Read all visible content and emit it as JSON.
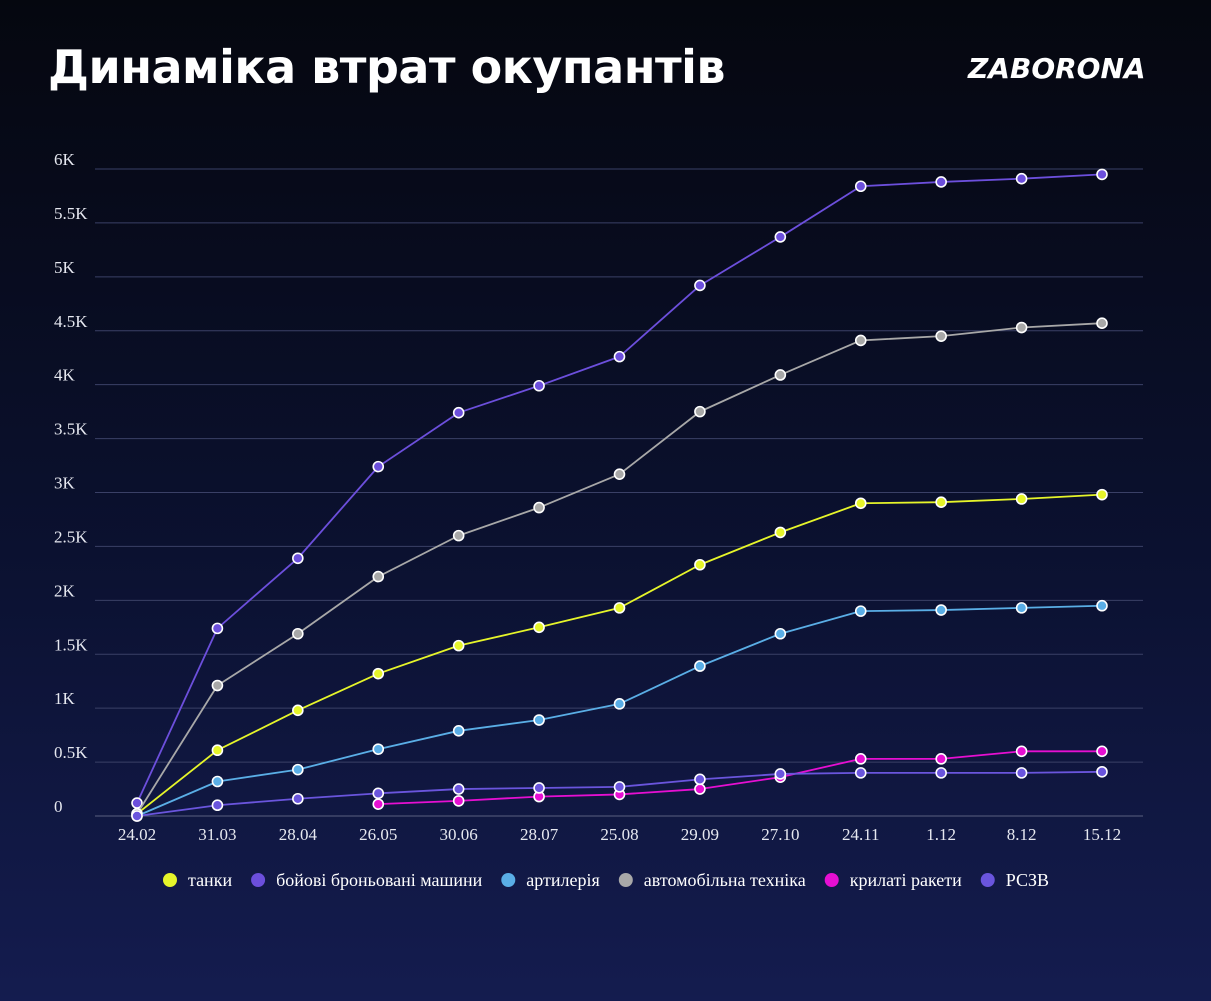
{
  "header": {
    "title": "Динаміка втрат окупантів",
    "brand": "ZABORONA"
  },
  "chart_data": {
    "type": "line",
    "title": "Динаміка втрат окупантів",
    "categories": [
      "24.02",
      "31.03",
      "28.04",
      "26.05",
      "30.06",
      "28.07",
      "25.08",
      "29.09",
      "27.10",
      "24.11",
      "1.12",
      "8.12",
      "15.12"
    ],
    "y_ticks": [
      0,
      500,
      1000,
      1500,
      2000,
      2500,
      3000,
      3500,
      4000,
      4500,
      5000,
      5500,
      6000
    ],
    "y_tick_labels": [
      "0",
      "0.5K",
      "1K",
      "1.5K",
      "2K",
      "2.5K",
      "3K",
      "3.5K",
      "4K",
      "4.5K",
      "5K",
      "5.5K",
      "6K"
    ],
    "ylim": [
      0,
      6000
    ],
    "grid": "horizontal",
    "legend_position": "bottom",
    "series": [
      {
        "name": "танки",
        "color": "#e6f52a",
        "values": [
          20,
          610,
          980,
          1320,
          1580,
          1750,
          1930,
          2330,
          2630,
          2900,
          2910,
          2940,
          2980
        ]
      },
      {
        "name": "бойові броньовані машини",
        "color": "#6c4fdc",
        "values": [
          120,
          1740,
          2390,
          3240,
          3740,
          3990,
          4260,
          4920,
          5370,
          5840,
          5880,
          5910,
          5950
        ]
      },
      {
        "name": "артилерія",
        "color": "#5aaee6",
        "values": [
          0,
          320,
          430,
          620,
          790,
          890,
          1040,
          1390,
          1690,
          1900,
          1910,
          1930,
          1950
        ]
      },
      {
        "name": "автомобільна техніка",
        "color": "#a8a8a8",
        "values": [
          20,
          1210,
          1690,
          2220,
          2600,
          2860,
          3170,
          3750,
          4090,
          4410,
          4450,
          4530,
          4570
        ]
      },
      {
        "name": "крилаті ракети",
        "color": "#e60fd2",
        "values": [
          null,
          null,
          null,
          110,
          140,
          180,
          200,
          250,
          360,
          530,
          530,
          600,
          600
        ]
      },
      {
        "name": "РСЗВ",
        "color": "#6a55dd",
        "values": [
          0,
          100,
          160,
          210,
          250,
          260,
          270,
          340,
          390,
          400,
          400,
          400,
          410
        ]
      }
    ]
  }
}
